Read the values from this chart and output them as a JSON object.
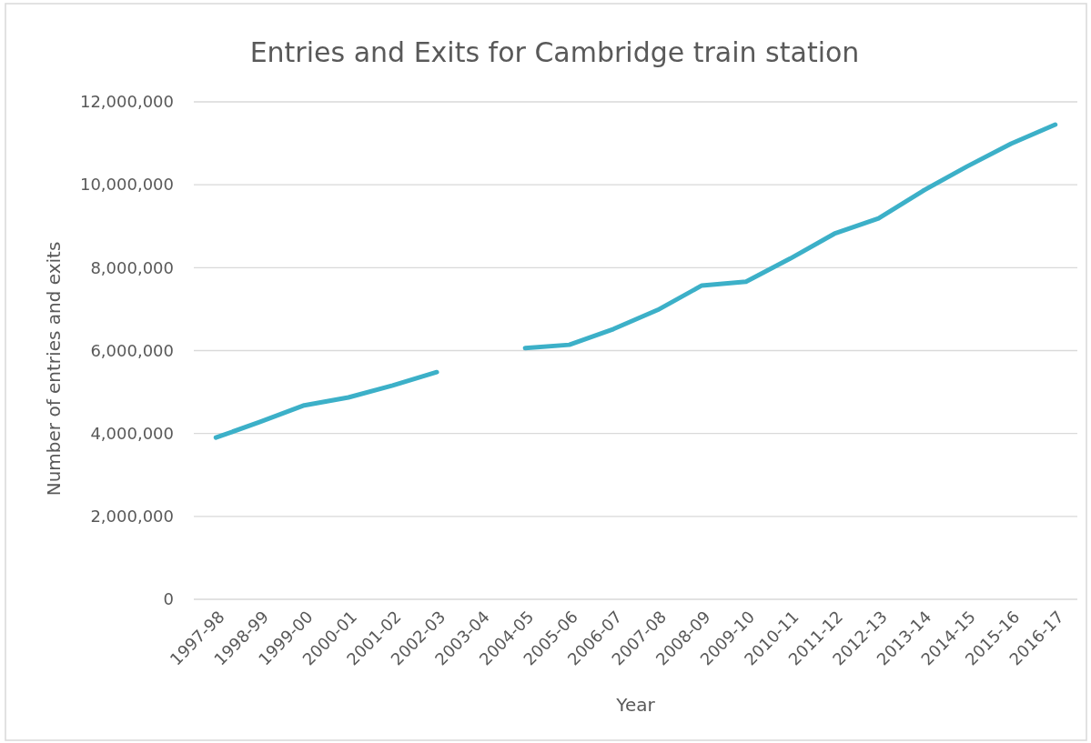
{
  "chart_data": {
    "type": "line",
    "title": "Entries and Exits for Cambridge train station",
    "xlabel": "Year",
    "ylabel": "Number of entries and exits",
    "categories": [
      "1997-98",
      "1998-99",
      "1999-00",
      "2000-01",
      "2001-02",
      "2002-03",
      "2003-04",
      "2004-05",
      "2005-06",
      "2006-07",
      "2007-08",
      "2008-09",
      "2009-10",
      "2010-11",
      "2011-12",
      "2012-13",
      "2013-14",
      "2014-15",
      "2015-16",
      "2016-17"
    ],
    "series": [
      {
        "color": "#3cb0c8",
        "values": [
          3900000,
          4280000,
          4680000,
          4870000,
          5160000,
          5480000,
          null,
          6060000,
          6140000,
          6520000,
          6980000,
          7570000,
          7660000,
          8220000,
          8820000,
          9190000,
          9850000,
          10440000,
          10990000,
          11450000
        ]
      }
    ],
    "ylim": [
      0,
      12000000
    ],
    "yticks": [
      {
        "value": 0,
        "label": "0"
      },
      {
        "value": 2000000,
        "label": "2,000,000"
      },
      {
        "value": 4000000,
        "label": "4,000,000"
      },
      {
        "value": 6000000,
        "label": "6,000,000"
      },
      {
        "value": 8000000,
        "label": "8,000,000"
      },
      {
        "value": 10000000,
        "label": "10,000,000"
      },
      {
        "value": 12000000,
        "label": "12,000,000"
      }
    ],
    "grid": "y",
    "marker": "none",
    "line_style": "solid"
  }
}
